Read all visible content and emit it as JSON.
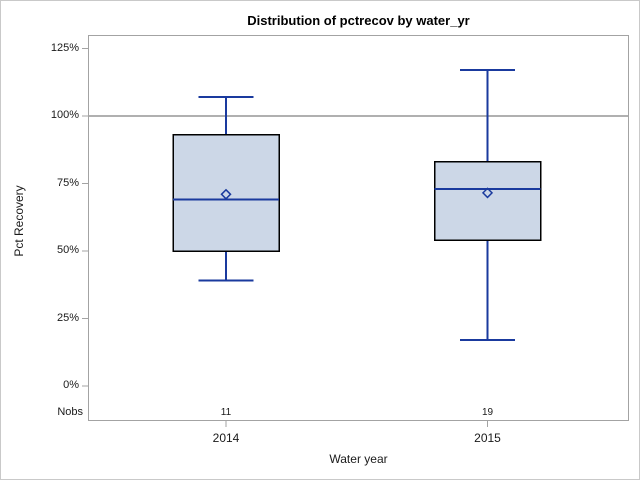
{
  "figure": {
    "title": "Distribution of pctrecov by water_yr",
    "y_axis_label": "Pct Recovery",
    "x_axis_label": "Water year",
    "nobs_label": "Nobs"
  },
  "chart_data": {
    "type": "boxplot",
    "title": "Distribution of pctrecov by water_yr",
    "xlabel": "Water year",
    "ylabel": "Pct Recovery",
    "categories": [
      "2014",
      "2015"
    ],
    "y_ticks": [
      0,
      25,
      50,
      75,
      100,
      125
    ],
    "y_tick_labels": [
      "0%",
      "25%",
      "50%",
      "75%",
      "100%",
      "125%"
    ],
    "ylim": [
      -12.5,
      130
    ],
    "reference_line": 100,
    "grid": false,
    "legend_position": "none",
    "groups": [
      {
        "category": "2014",
        "nobs": 11,
        "whisker_low": 39,
        "q1": 50,
        "median": 69,
        "mean": 71,
        "q3": 93,
        "whisker_high": 107
      },
      {
        "category": "2015",
        "nobs": 19,
        "whisker_low": 17,
        "q1": 54,
        "median": 73,
        "mean": 71.5,
        "q3": 83,
        "whisker_high": 117
      }
    ],
    "colors": {
      "box_fill": "#ccd7e7",
      "box_border": "#000000",
      "line": "#1a3a9e",
      "reference_line": "#b0b0b0",
      "frame": "#a3a3a3",
      "text": "#1a1a1a"
    }
  }
}
